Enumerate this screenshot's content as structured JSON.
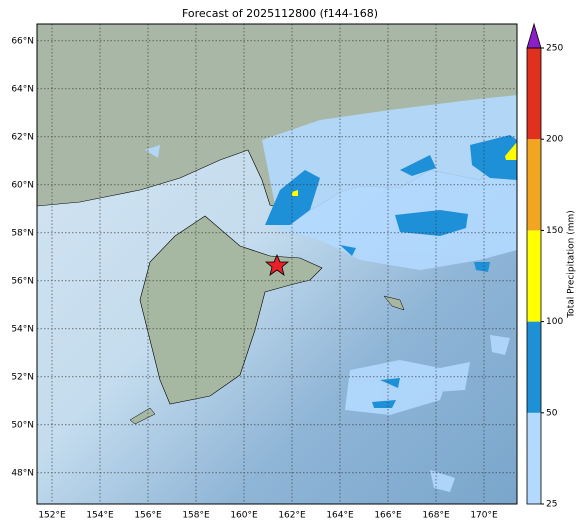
{
  "title": "Forecast of 2025112800 (f144-168)",
  "map": {
    "lonlim": [
      151.375,
      171.375
    ],
    "latlim": [
      46.7,
      66.7
    ],
    "lon_ticks": [
      {
        "value": 152,
        "label": "152°E"
      },
      {
        "value": 154,
        "label": "154°E"
      },
      {
        "value": 156,
        "label": "156°E"
      },
      {
        "value": 158,
        "label": "158°E"
      },
      {
        "value": 160,
        "label": "160°E"
      },
      {
        "value": 162,
        "label": "162°E"
      },
      {
        "value": 164,
        "label": "164°E"
      },
      {
        "value": 166,
        "label": "166°E"
      },
      {
        "value": 168,
        "label": "168°E"
      },
      {
        "value": 170,
        "label": "170°E"
      }
    ],
    "lat_ticks": [
      {
        "value": 66,
        "label": "66°N"
      },
      {
        "value": 64,
        "label": "64°N"
      },
      {
        "value": 62,
        "label": "62°N"
      },
      {
        "value": 60,
        "label": "60°N"
      },
      {
        "value": 58,
        "label": "58°N"
      },
      {
        "value": 56,
        "label": "56°N"
      },
      {
        "value": 54,
        "label": "54°N"
      },
      {
        "value": 52,
        "label": "52°N"
      },
      {
        "value": 50,
        "label": "50°N"
      },
      {
        "value": 48,
        "label": "48°N"
      }
    ]
  },
  "colorbar": {
    "label": "Total Precipitation (mm)",
    "ticks": [
      25,
      50,
      100,
      150,
      200,
      250
    ],
    "colors": [
      "#b3d9ff",
      "#1e90d8",
      "#ffff00",
      "#f2a51f",
      "#e0301e"
    ],
    "extend_color": "#8a1fc8"
  }
}
